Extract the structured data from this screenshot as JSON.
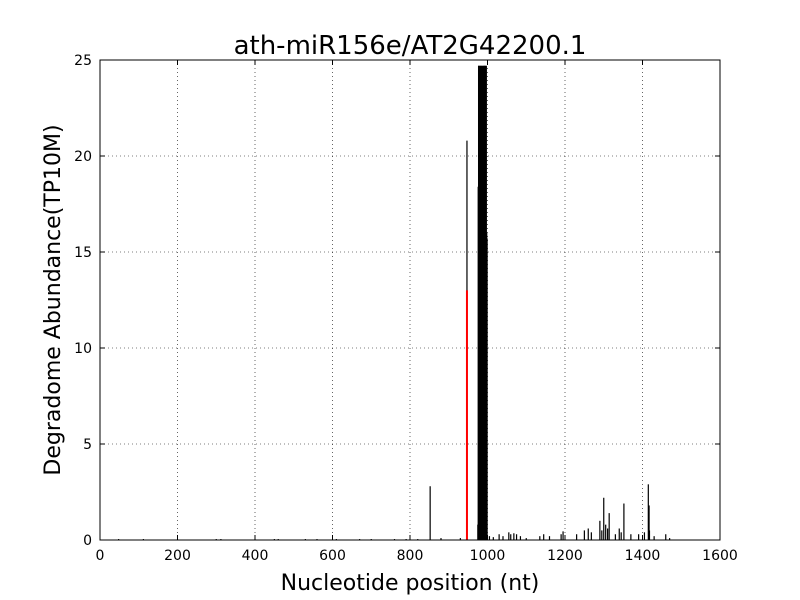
{
  "chart_data": {
    "type": "spike",
    "title": "ath-miR156e/AT2G42200.1",
    "xlabel": "Nucleotide position (nt)",
    "ylabel": "Degradome Abundance(TP10M)",
    "xlim": [
      0,
      1600
    ],
    "ylim": [
      0,
      25
    ],
    "xticks": [
      0,
      200,
      400,
      600,
      800,
      1000,
      1200,
      1400,
      1600
    ],
    "yticks": [
      0,
      5,
      10,
      15,
      20,
      25
    ],
    "grid": true,
    "series": [
      {
        "color": "#000000",
        "x": [
          48,
          112,
          300,
          312,
          450,
          460,
          530,
          560,
          610,
          670,
          700,
          760,
          790,
          820,
          852,
          880,
          930,
          947,
          975,
          976,
          977,
          978,
          979,
          980,
          981,
          982,
          983,
          984,
          985,
          986,
          987,
          988,
          989,
          990,
          991,
          992,
          993,
          994,
          995,
          996,
          997,
          998,
          999,
          1005,
          1015,
          1030,
          1040,
          1055,
          1060,
          1068,
          1075,
          1085,
          1100,
          1135,
          1145,
          1160,
          1190,
          1195,
          1230,
          1250,
          1260,
          1268,
          1290,
          1295,
          1300,
          1305,
          1310,
          1314,
          1330,
          1340,
          1345,
          1352,
          1370,
          1390,
          1405,
          1415,
          1417,
          1418,
          1430,
          1460,
          1470
        ],
        "values": [
          0.05,
          0.05,
          0.05,
          0.05,
          0.05,
          0.05,
          0.05,
          0.05,
          0.05,
          0.05,
          0.05,
          0.05,
          0.05,
          0.05,
          2.8,
          0.1,
          0.1,
          20.8,
          0.8,
          18.4,
          24.7,
          24.7,
          18,
          24.7,
          22,
          24.7,
          18.4,
          24.7,
          20,
          24.7,
          16,
          24.7,
          22,
          24.7,
          18,
          24.7,
          24.7,
          15.7,
          24.7,
          20,
          24.7,
          16,
          15.7,
          0.2,
          0.15,
          0.3,
          0.2,
          0.4,
          0.3,
          0.35,
          0.3,
          0.2,
          0.1,
          0.2,
          0.3,
          0.2,
          0.3,
          0.45,
          0.3,
          0.5,
          0.6,
          0.4,
          1.0,
          0.5,
          2.2,
          0.8,
          0.6,
          1.4,
          0.3,
          0.6,
          0.4,
          1.9,
          0.3,
          0.3,
          0.4,
          2.9,
          1.8,
          0.5,
          0.2,
          0.3,
          0.1
        ]
      },
      {
        "color": "#ff0000",
        "x": [
          947
        ],
        "values": [
          13
        ]
      }
    ]
  }
}
